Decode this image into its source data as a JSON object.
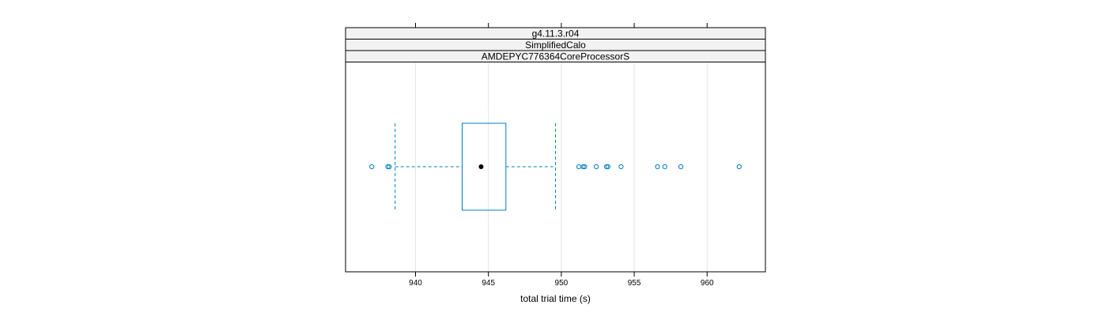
{
  "chart_data": {
    "type": "boxplot",
    "strips": [
      "g4.11.3.r04",
      "SimplifiedCalo",
      "AMDEPYC776364CoreProcessorS"
    ],
    "xlabel": "total trial time (s)",
    "xlim": [
      935.2,
      964
    ],
    "xticks": [
      940,
      945,
      950,
      955,
      960
    ],
    "grid": true,
    "box": {
      "whisker_low": 938.6,
      "q1": 943.2,
      "median": 944.5,
      "q3": 946.2,
      "whisker_high": 949.6
    },
    "outliers": [
      937.0,
      938.1,
      938.2,
      951.2,
      951.5,
      951.6,
      952.4,
      953.1,
      953.2,
      954.1,
      956.6,
      957.1,
      958.2,
      962.2
    ],
    "colors": {
      "box": "#0080c0",
      "whisker": "#0080c0",
      "outlier": "#0080c0",
      "median_dot": "#000000",
      "strip_bg": "#f2f2f2",
      "grid": "#e6e6e6",
      "frame": "#000000"
    }
  }
}
